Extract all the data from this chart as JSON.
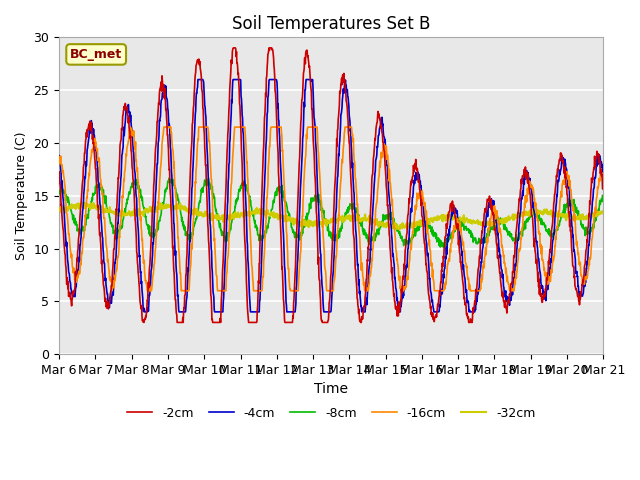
{
  "title": "Soil Temperatures Set B",
  "xlabel": "Time",
  "ylabel": "Soil Temperature (C)",
  "annotation": "BC_met",
  "ylim": [
    0,
    30
  ],
  "x_tick_labels": [
    "Mar 6",
    "Mar 7",
    "Mar 8",
    "Mar 9",
    "Mar 10",
    "Mar 11",
    "Mar 12",
    "Mar 13",
    "Mar 14",
    "Mar 15",
    "Mar 16",
    "Mar 17",
    "Mar 18",
    "Mar 19",
    "Mar 20",
    "Mar 21"
  ],
  "series": {
    "-2cm": {
      "color": "#cc0000",
      "lw": 1.2
    },
    "-4cm": {
      "color": "#0000cc",
      "lw": 1.2
    },
    "-8cm": {
      "color": "#00bb00",
      "lw": 1.2
    },
    "-16cm": {
      "color": "#ff8800",
      "lw": 1.2
    },
    "-32cm": {
      "color": "#cccc00",
      "lw": 1.5
    }
  },
  "bg_color": "#e8e8e8",
  "grid_color": "white",
  "figsize": [
    6.4,
    4.8
  ],
  "dpi": 100
}
